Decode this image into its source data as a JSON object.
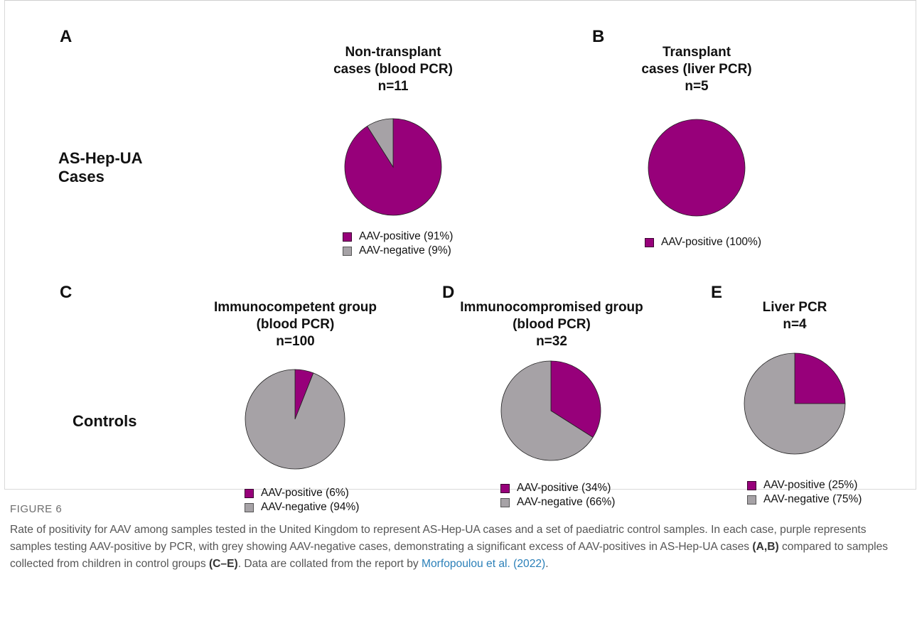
{
  "colors": {
    "positive": "#97007a",
    "negative": "#a6a2a6"
  },
  "row_labels": {
    "cases": [
      "AS-Hep-UA",
      "Cases"
    ],
    "controls": "Controls"
  },
  "panels": [
    {
      "id": "A",
      "letter": "A",
      "title": [
        "Non-transplant",
        "cases (blood PCR)",
        "n=11"
      ],
      "legend": [
        "AAV-positive (91%)",
        "AAV-negative (9%)"
      ]
    },
    {
      "id": "B",
      "letter": "B",
      "title": [
        "Transplant",
        "cases (liver PCR)",
        "n=5"
      ],
      "legend": [
        "AAV-positive (100%)"
      ]
    },
    {
      "id": "C",
      "letter": "C",
      "title": [
        "Immunocompetent group",
        "(blood PCR)",
        "n=100"
      ],
      "legend": [
        "AAV-positive (6%)",
        "AAV-negative (94%)"
      ]
    },
    {
      "id": "D",
      "letter": "D",
      "title": [
        "Immunocompromised group",
        "(blood PCR)",
        "n=32"
      ],
      "legend": [
        "AAV-positive (34%)",
        "AAV-negative (66%)"
      ]
    },
    {
      "id": "E",
      "letter": "E",
      "title": [
        "Liver PCR",
        "n=4"
      ],
      "legend": [
        "AAV-positive (25%)",
        "AAV-negative (75%)"
      ]
    }
  ],
  "chart_data": [
    {
      "type": "pie",
      "title": "Non-transplant cases (blood PCR) n=11",
      "labels": [
        "AAV-positive",
        "AAV-negative"
      ],
      "values": [
        91,
        9
      ],
      "legend": "bottom"
    },
    {
      "type": "pie",
      "title": "Transplant cases (liver PCR) n=5",
      "labels": [
        "AAV-positive"
      ],
      "values": [
        100
      ],
      "legend": "bottom"
    },
    {
      "type": "pie",
      "title": "Immunocompetent group (blood PCR) n=100",
      "labels": [
        "AAV-positive",
        "AAV-negative"
      ],
      "values": [
        6,
        94
      ],
      "legend": "bottom"
    },
    {
      "type": "pie",
      "title": "Immunocompromised group (blood PCR) n=32",
      "labels": [
        "AAV-positive",
        "AAV-negative"
      ],
      "values": [
        34,
        66
      ],
      "legend": "bottom"
    },
    {
      "type": "pie",
      "title": "Liver PCR n=4",
      "labels": [
        "AAV-positive",
        "AAV-negative"
      ],
      "values": [
        25,
        75
      ],
      "legend": "bottom"
    }
  ],
  "caption": {
    "figure_label": "FIGURE 6",
    "text_1": "Rate of positivity for AAV among samples tested in the United Kingdom to represent AS-Hep-UA cases and a set of paediatric control samples. In each case, purple represents samples testing AAV-positive by PCR, with grey showing AAV-negative cases, demonstrating a significant excess of AAV-positives in AS-Hep-UA cases ",
    "ref_1": "(A,B)",
    "text_2": " compared to samples collected from children in control groups ",
    "ref_2": "(C–E)",
    "text_3": ". Data are collated from the report by ",
    "link": "Morfopoulou et al. (2022)",
    "text_4": "."
  }
}
